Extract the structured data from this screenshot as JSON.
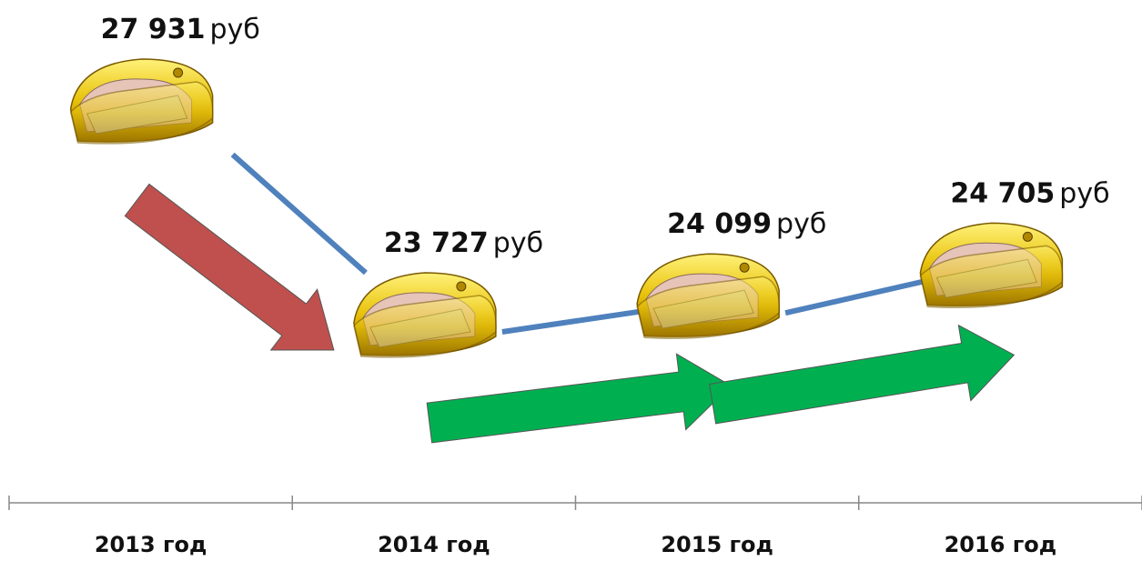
{
  "chart_data": {
    "type": "line",
    "categories": [
      "2013 год",
      "2014 год",
      "2015 год",
      "2016 год"
    ],
    "values": [
      27931,
      23727,
      24099,
      24705
    ],
    "value_labels": [
      "27 931",
      "23 727",
      "24 099",
      "24 705"
    ],
    "unit": "руб",
    "color": "#4f81bd",
    "arrow_colors": {
      "down": "#c0504d",
      "up": "#00b050"
    }
  }
}
